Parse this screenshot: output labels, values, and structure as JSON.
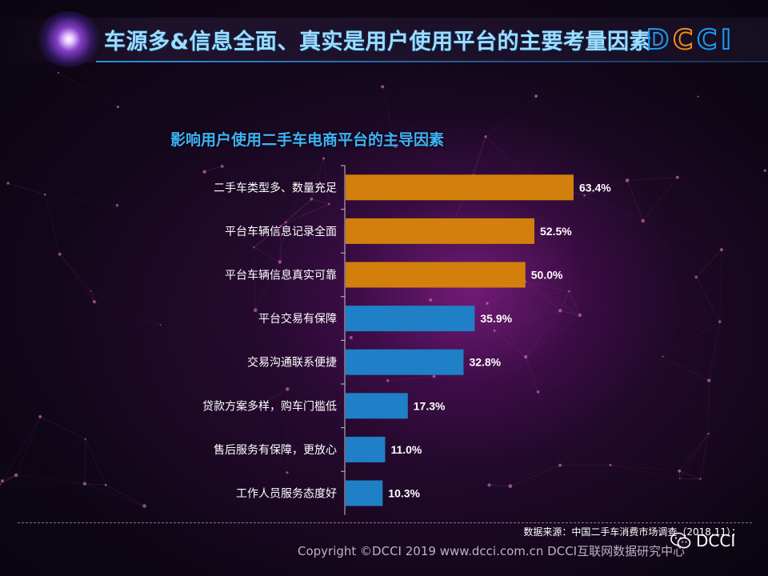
{
  "header": {
    "title": "车源多&信息全面、真实是用户使用平台的主要考量因素",
    "logo_parts": [
      "D",
      "C",
      "C",
      "I"
    ]
  },
  "chart_data": {
    "type": "bar",
    "orientation": "horizontal",
    "title": "影响用户使用二手车电商平台的主导因素",
    "categories": [
      "二手车类型多、数量充足",
      "平台车辆信息记录全面",
      "平台车辆信息真实可靠",
      "平台交易有保障",
      "交易沟通联系便捷",
      "贷款方案多样，购车门槛低",
      "售后服务有保障，更放心",
      "工作人员服务态度好"
    ],
    "values": [
      63.4,
      52.5,
      50.0,
      35.9,
      32.8,
      17.3,
      11.0,
      10.3
    ],
    "value_labels": [
      "63.4%",
      "52.5%",
      "50.0%",
      "35.9%",
      "32.8%",
      "17.3%",
      "11.0%",
      "10.3%"
    ],
    "xlim": [
      0,
      100
    ],
    "bar_colors": [
      "#d27f0c",
      "#d27f0c",
      "#d27f0c",
      "#1f7fc7",
      "#1f7fc7",
      "#1f7fc7",
      "#1f7fc7",
      "#1f7fc7"
    ],
    "grid": false
  },
  "footer": {
    "source": "数据来源：中国二手车消费市场调查（2018.11）；",
    "copyright": "Copyright ©DCCI 2019  www.dcci.com.cn   DCCI互联网数据研究中心",
    "watermark": "DCCI"
  },
  "colors": {
    "orange_bar": "#d27f0c",
    "blue_bar": "#1f7fc7",
    "title_blue": "#3fb2f5"
  }
}
